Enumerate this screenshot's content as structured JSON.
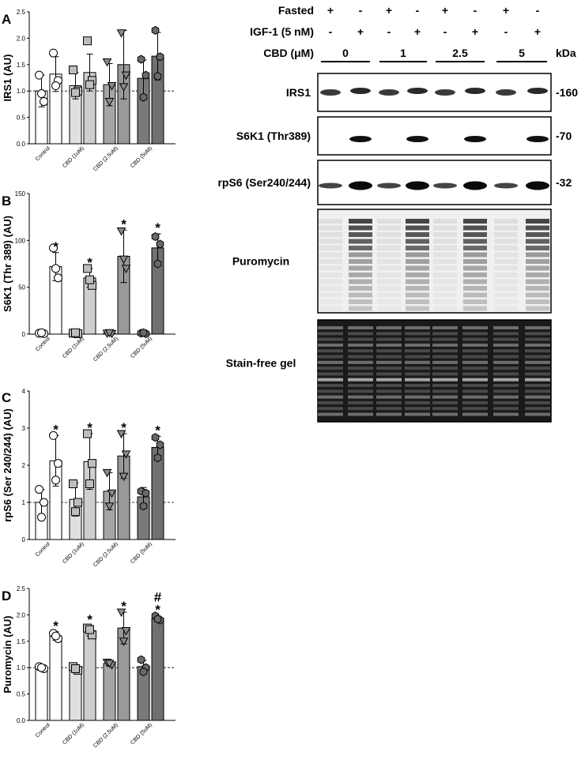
{
  "chart_data": [
    {
      "type": "bar",
      "panel_label": "A",
      "ylabel": "IRS1 (AU)",
      "ylim": [
        0,
        2.5
      ],
      "yticks": [
        "0.0",
        "0.5",
        "1.0",
        "1.5",
        "2.0",
        "2.5"
      ],
      "reference_line": 1.0,
      "group_labels": [
        "Control",
        "CBD (1uM)",
        "CBD (2.5uM)",
        "CBD (5uM)"
      ],
      "bars": [
        {
          "group": "Control",
          "condition": "Fasted",
          "value": 1.0,
          "sd": 0.3,
          "marker": "circle",
          "points": [
            1.3,
            0.8,
            0.95
          ],
          "star": ""
        },
        {
          "group": "Control",
          "condition": "IGF-1",
          "value": 1.32,
          "sd": 0.33,
          "marker": "circle",
          "points": [
            1.72,
            1.2,
            1.1
          ],
          "star": ""
        },
        {
          "group": "CBD (1uM)",
          "condition": "Fasted",
          "value": 1.1,
          "sd": 0.25,
          "marker": "square",
          "points": [
            1.4,
            1.0,
            0.97
          ],
          "star": ""
        },
        {
          "group": "CBD (1uM)",
          "condition": "IGF-1",
          "value": 1.35,
          "sd": 0.35,
          "marker": "square",
          "points": [
            1.95,
            1.2,
            1.12
          ],
          "star": ""
        },
        {
          "group": "CBD (2.5uM)",
          "condition": "Fasted",
          "value": 1.12,
          "sd": 0.4,
          "marker": "triangle",
          "points": [
            1.55,
            1.1,
            0.8
          ],
          "star": ""
        },
        {
          "group": "CBD (2.5uM)",
          "condition": "IGF-1",
          "value": 1.5,
          "sd": 0.65,
          "marker": "triangle",
          "points": [
            2.1,
            1.3,
            1.08
          ],
          "star": ""
        },
        {
          "group": "CBD (5uM)",
          "condition": "Fasted",
          "value": 1.24,
          "sd": 0.35,
          "marker": "hexagon",
          "points": [
            1.6,
            1.3,
            0.88
          ],
          "star": ""
        },
        {
          "group": "CBD (5uM)",
          "condition": "IGF-1",
          "value": 1.66,
          "sd": 0.45,
          "marker": "hexagon",
          "points": [
            2.15,
            1.65,
            1.28
          ],
          "star": ""
        }
      ]
    },
    {
      "type": "bar",
      "panel_label": "B",
      "ylabel": "S6K1 (Thr 389) (AU)",
      "ylim": [
        0,
        150
      ],
      "yticks": [
        "0",
        "50",
        "100",
        "150"
      ],
      "reference_line": null,
      "group_labels": [
        "Control",
        "CBD (1uM)",
        "CBD (2.5uM)",
        "CBD (5uM)"
      ],
      "bars": [
        {
          "group": "Control",
          "condition": "Fasted",
          "value": 1,
          "sd": 0.5,
          "marker": "circle",
          "points": [
            1,
            0.5,
            1.5
          ],
          "star": ""
        },
        {
          "group": "Control",
          "condition": "IGF-1",
          "value": 72,
          "sd": 15,
          "marker": "circle",
          "points": [
            92,
            60,
            70
          ],
          "star": "*"
        },
        {
          "group": "CBD (1uM)",
          "condition": "Fasted",
          "value": 1,
          "sd": 0.5,
          "marker": "square",
          "points": [
            1,
            0.5,
            1.5
          ],
          "star": ""
        },
        {
          "group": "CBD (1uM)",
          "condition": "IGF-1",
          "value": 60,
          "sd": 10,
          "marker": "square",
          "points": [
            70,
            52,
            58
          ],
          "star": "*"
        },
        {
          "group": "CBD (2.5uM)",
          "condition": "Fasted",
          "value": 1,
          "sd": 0.5,
          "marker": "triangle",
          "points": [
            1,
            0.5,
            1.5
          ],
          "star": ""
        },
        {
          "group": "CBD (2.5uM)",
          "condition": "IGF-1",
          "value": 83,
          "sd": 28,
          "marker": "triangle",
          "points": [
            110,
            70,
            80
          ],
          "star": "*"
        },
        {
          "group": "CBD (5uM)",
          "condition": "Fasted",
          "value": 1,
          "sd": 0.5,
          "marker": "hexagon",
          "points": [
            1,
            0.5,
            1.5
          ],
          "star": ""
        },
        {
          "group": "CBD (5uM)",
          "condition": "IGF-1",
          "value": 92,
          "sd": 15,
          "marker": "hexagon",
          "points": [
            104,
            96,
            75
          ],
          "star": "*"
        }
      ]
    },
    {
      "type": "bar",
      "panel_label": "C",
      "ylabel": "rpS6 (Ser 240/244) (AU)",
      "ylim": [
        0,
        4
      ],
      "yticks": [
        "0",
        "1",
        "2",
        "3",
        "4"
      ],
      "reference_line": 1.0,
      "group_labels": [
        "Control",
        "CBD (1uM)",
        "CBD (2.5uM)",
        "CBD (5uM)"
      ],
      "bars": [
        {
          "group": "Control",
          "condition": "Fasted",
          "value": 1.0,
          "sd": 0.35,
          "marker": "circle",
          "points": [
            1.35,
            1.0,
            0.6
          ],
          "star": ""
        },
        {
          "group": "Control",
          "condition": "IGF-1",
          "value": 2.12,
          "sd": 0.68,
          "marker": "circle",
          "points": [
            2.8,
            2.05,
            1.6
          ],
          "star": "*"
        },
        {
          "group": "CBD (1uM)",
          "condition": "Fasted",
          "value": 1.08,
          "sd": 0.45,
          "marker": "square",
          "points": [
            1.5,
            1.0,
            0.75
          ],
          "star": ""
        },
        {
          "group": "CBD (1uM)",
          "condition": "IGF-1",
          "value": 2.1,
          "sd": 0.75,
          "marker": "square",
          "points": [
            2.85,
            2.05,
            1.5
          ],
          "star": "*"
        },
        {
          "group": "CBD (2.5uM)",
          "condition": "Fasted",
          "value": 1.3,
          "sd": 0.5,
          "marker": "triangle",
          "points": [
            1.8,
            1.25,
            0.9
          ],
          "star": ""
        },
        {
          "group": "CBD (2.5uM)",
          "condition": "IGF-1",
          "value": 2.25,
          "sd": 0.6,
          "marker": "triangle",
          "points": [
            2.85,
            2.3,
            1.7
          ],
          "star": "*"
        },
        {
          "group": "CBD (5uM)",
          "condition": "Fasted",
          "value": 1.15,
          "sd": 0.25,
          "marker": "hexagon",
          "points": [
            1.3,
            1.25,
            0.9
          ],
          "star": ""
        },
        {
          "group": "CBD (5uM)",
          "condition": "IGF-1",
          "value": 2.48,
          "sd": 0.3,
          "marker": "hexagon",
          "points": [
            2.75,
            2.55,
            2.2
          ],
          "star": "*"
        }
      ]
    },
    {
      "type": "bar",
      "panel_label": "D",
      "ylabel": "Puromycin (AU)",
      "ylim": [
        0,
        2.5
      ],
      "yticks": [
        "0.0",
        "0.5",
        "1.0",
        "1.5",
        "2.0",
        "2.5"
      ],
      "reference_line": 1.0,
      "group_labels": [
        "Control",
        "CBD (1uM)",
        "CBD (2.5uM)",
        "CBD (5uM)"
      ],
      "bars": [
        {
          "group": "Control",
          "condition": "Fasted",
          "value": 1.0,
          "sd": 0.03,
          "marker": "circle",
          "points": [
            1.02,
            0.98,
            1.0
          ],
          "star": ""
        },
        {
          "group": "Control",
          "condition": "IGF-1",
          "value": 1.6,
          "sd": 0.08,
          "marker": "circle",
          "points": [
            1.65,
            1.55,
            1.6
          ],
          "star": "*"
        },
        {
          "group": "CBD (1uM)",
          "condition": "Fasted",
          "value": 0.98,
          "sd": 0.06,
          "marker": "square",
          "points": [
            1.02,
            0.95,
            0.98
          ],
          "star": ""
        },
        {
          "group": "CBD (1uM)",
          "condition": "IGF-1",
          "value": 1.7,
          "sd": 0.1,
          "marker": "square",
          "points": [
            1.75,
            1.62,
            1.72
          ],
          "star": "*"
        },
        {
          "group": "CBD (2.5uM)",
          "condition": "Fasted",
          "value": 1.08,
          "sd": 0.05,
          "marker": "triangle",
          "points": [
            1.1,
            1.05,
            1.08
          ],
          "star": ""
        },
        {
          "group": "CBD (2.5uM)",
          "condition": "IGF-1",
          "value": 1.75,
          "sd": 0.3,
          "marker": "triangle",
          "points": [
            2.05,
            1.7,
            1.5
          ],
          "star": "*"
        },
        {
          "group": "CBD (5uM)",
          "condition": "Fasted",
          "value": 1.02,
          "sd": 0.12,
          "marker": "hexagon",
          "points": [
            1.15,
            1.0,
            0.92
          ],
          "star": ""
        },
        {
          "group": "CBD (5uM)",
          "condition": "IGF-1",
          "value": 1.93,
          "sd": 0.05,
          "marker": "hexagon",
          "points": [
            1.98,
            1.9,
            1.92
          ],
          "star": "*#"
        }
      ]
    }
  ],
  "blot": {
    "rows": [
      {
        "label": "Fasted",
        "values": [
          "+",
          "-",
          "+",
          "-",
          "+",
          "-",
          "+",
          "-"
        ]
      },
      {
        "label": "IGF-1 (5 nM)",
        "values": [
          "-",
          "+",
          "-",
          "+",
          "-",
          "+",
          "-",
          "+"
        ]
      }
    ],
    "cbd_label": "CBD (μM)",
    "cbd_doses": [
      "0",
      "1",
      "2.5",
      "5"
    ],
    "kda_label": "kDa",
    "panels": [
      {
        "name": "IRS1",
        "kda": "-160"
      },
      {
        "name": "S6K1 (Thr389)",
        "kda": "-70"
      },
      {
        "name": "rpS6 (Ser240/244)",
        "kda": "-32"
      },
      {
        "name": "Puromycin",
        "kda": ""
      },
      {
        "name": "Stain-free gel",
        "kda": ""
      }
    ]
  },
  "colors": {
    "fasted_fills": [
      "#ffffff",
      "#e0e0e0",
      "#a6a6a6",
      "#7a7a7a"
    ],
    "igf_fills": [
      "#ffffff",
      "#cfcfcf",
      "#999999",
      "#707070"
    ],
    "marker_fills": [
      "#ffffff",
      "#bdbdbd",
      "#8a8a8a",
      "#6a6a6a"
    ]
  }
}
